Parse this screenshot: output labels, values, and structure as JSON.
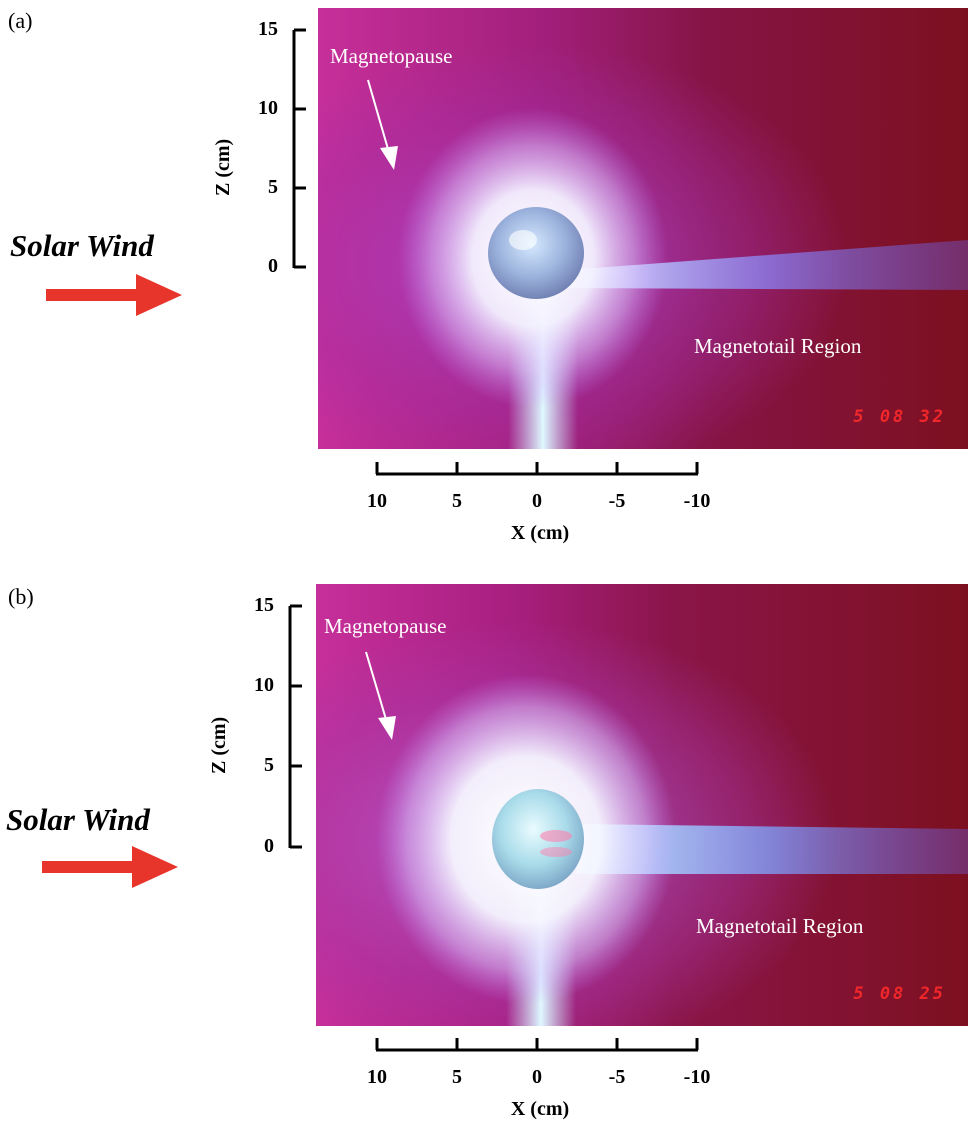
{
  "panels": [
    {
      "label": "(a)",
      "magnetopause_label": "Magnetopause",
      "magnetotail_label": "Magnetotail Region",
      "timestamp": "5 08 32",
      "solar_wind_label": "Solar Wind",
      "z_axis_title": "Z (cm)",
      "z_ticks": [
        "15",
        "10",
        "5",
        "0"
      ],
      "x_axis_title": "X (cm)",
      "x_ticks": [
        "10",
        "5",
        "0",
        "-5",
        "-10"
      ]
    },
    {
      "label": "(b)",
      "magnetopause_label": "Magnetopause",
      "magnetotail_label": "Magnetotail Region",
      "timestamp": "5 08 25",
      "solar_wind_label": "Solar Wind",
      "z_axis_title": "Z (cm)",
      "z_ticks": [
        "15",
        "10",
        "5",
        "0"
      ],
      "x_axis_title": "X (cm)",
      "x_ticks": [
        "10",
        "5",
        "0",
        "-5",
        "-10"
      ]
    }
  ],
  "colors": {
    "plasma_background": "#8e1340",
    "plasma_glow": "#ffffff",
    "tail_glow": "#8a8cff",
    "sheath_purple": "#b030b8",
    "solar_wind_arrow": "#e8352b",
    "timestamp": "#ff2a2a"
  }
}
